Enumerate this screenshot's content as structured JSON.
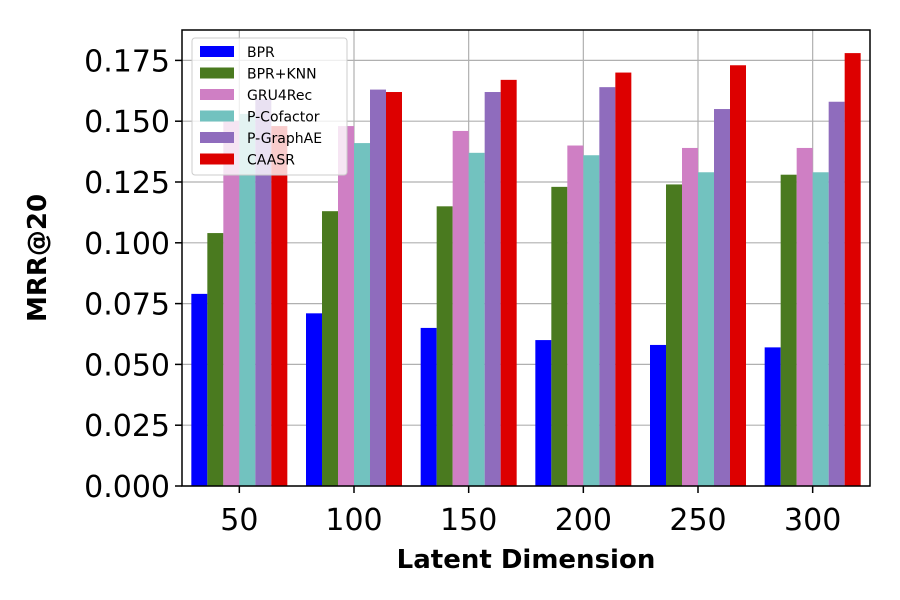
{
  "chart_data": {
    "type": "bar",
    "xlabel": "Latent Dimension",
    "ylabel": "MRR@20",
    "categories": [
      "50",
      "100",
      "150",
      "200",
      "250",
      "300"
    ],
    "ylim": [
      0,
      0.1875
    ],
    "yticks": [
      "0.000",
      "0.025",
      "0.050",
      "0.075",
      "0.100",
      "0.125",
      "0.150",
      "0.175"
    ],
    "grid": true,
    "legend_position": "top-left",
    "series": [
      {
        "name": "BPR",
        "color": "#0000ff",
        "values": [
          0.079,
          0.071,
          0.065,
          0.06,
          0.058,
          0.057
        ]
      },
      {
        "name": "BPR+KNN",
        "color": "#4a7a1f",
        "values": [
          0.104,
          0.113,
          0.115,
          0.123,
          0.124,
          0.128
        ]
      },
      {
        "name": "GRU4Rec",
        "color": "#cf7fc4",
        "values": [
          0.15,
          0.148,
          0.146,
          0.14,
          0.139,
          0.139
        ]
      },
      {
        "name": "P-Cofactor",
        "color": "#72c2bf",
        "values": [
          0.153,
          0.141,
          0.137,
          0.136,
          0.129,
          0.129
        ]
      },
      {
        "name": "P-GraphAE",
        "color": "#8f6cbd",
        "values": [
          0.159,
          0.163,
          0.162,
          0.164,
          0.155,
          0.158
        ]
      },
      {
        "name": "CAASR",
        "color": "#dd0000",
        "values": [
          0.148,
          0.162,
          0.167,
          0.17,
          0.173,
          0.178
        ]
      }
    ]
  }
}
